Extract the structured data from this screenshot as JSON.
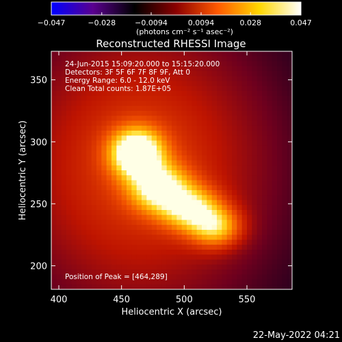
{
  "chart_data": {
    "type": "heatmap",
    "title": "Reconstructed RHESSI Image",
    "xlabel": "Heliocentric X (arcsec)",
    "ylabel": "Heliocentric Y (arcsec)",
    "xlim": [
      394,
      586
    ],
    "ylim": [
      181,
      373
    ],
    "x_ticks": [
      400,
      450,
      500,
      550
    ],
    "y_ticks": [
      200,
      250,
      300,
      350
    ],
    "colorbar": {
      "ticks": [
        -0.047,
        -0.028,
        -0.0094,
        0.0094,
        0.028,
        0.047
      ],
      "tick_labels": [
        "−0.047",
        "−0.028",
        "−0.0094",
        "0.0094",
        "0.028",
        "0.047"
      ],
      "range": [
        -0.047,
        0.047
      ],
      "unit_label": "(photons cm⁻² s⁻¹ asec⁻²)",
      "colors": [
        "#0000ff",
        "#5a008f",
        "#000000",
        "#8b0000",
        "#ff5a00",
        "#ffd700",
        "#ffffff"
      ]
    },
    "annotations": [
      "24-Jun-2015 15:09:20.000 to 15:15:20.000",
      "Detectors: 3F 5F 6F 7F 8F 9F, Att 0",
      "Energy Range: 6.0 - 12.0 keV",
      "Clean     Total counts: 1.87E+05"
    ],
    "peak_label": "Position of Peak = [464,289]",
    "sources": [
      {
        "x": 462,
        "y": 291,
        "sx": 14,
        "sy": 13,
        "amp": 0.047
      },
      {
        "x": 480,
        "y": 263,
        "sx": 16,
        "sy": 13,
        "amp": 0.034
      },
      {
        "x": 505,
        "y": 246,
        "sx": 16,
        "sy": 12,
        "amp": 0.03
      },
      {
        "x": 525,
        "y": 231,
        "sx": 14,
        "sy": 11,
        "amp": 0.027
      },
      {
        "x": 465,
        "y": 280,
        "sx": 75,
        "sy": 85,
        "amp": 0.02
      }
    ]
  },
  "footer": {
    "timestamp": "22-May-2022 04:21"
  }
}
